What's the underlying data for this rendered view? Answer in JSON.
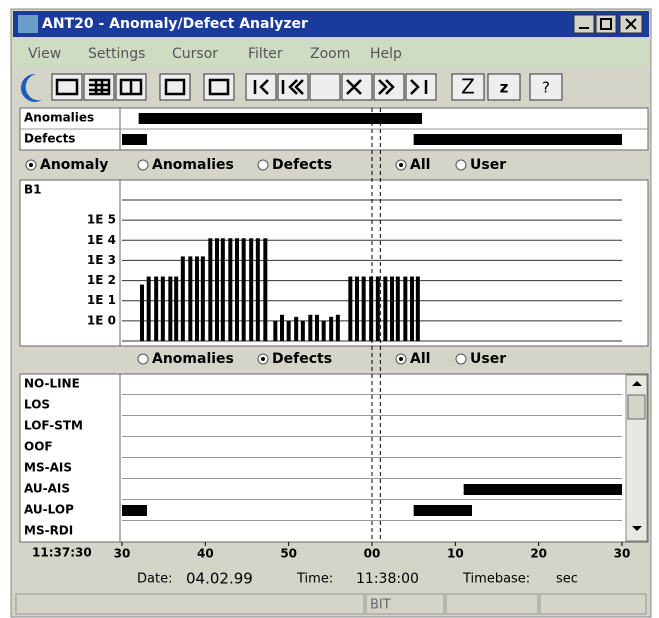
{
  "window": {
    "title": "ANT20 - Anomaly/Defect Analyzer"
  },
  "menu": [
    "View",
    "Settings",
    "Cursor",
    "Filter",
    "Zoom",
    "Help"
  ],
  "toolbar": {
    "labels": [
      "Z",
      "z",
      "?"
    ]
  },
  "filters": [
    {
      "options": [
        "Anomaly",
        "Anomalies",
        "Defects",
        "All",
        "User"
      ],
      "selected": [
        0,
        3
      ]
    },
    {
      "options": [
        "Anomalies",
        "Defects",
        "All",
        "User"
      ],
      "selected": [
        1,
        2
      ]
    }
  ],
  "cursor": [
    30,
    31
  ],
  "chart_data": [
    {
      "type": "timeline",
      "xlim": [
        0,
        60
      ],
      "color": "#000000",
      "rows": [
        {
          "name": "Anomalies",
          "intervals": [
            [
              2,
              36
            ]
          ]
        },
        {
          "name": "Defects",
          "intervals": [
            [
              0,
              3
            ],
            [
              35,
              60
            ]
          ]
        }
      ]
    },
    {
      "type": "bar",
      "title": "B1",
      "xlim": [
        0,
        60
      ],
      "ylim": [
        -1,
        6
      ],
      "color": "#000000",
      "yticks": [
        {
          "value": 5,
          "label": "1E 5"
        },
        {
          "value": 4,
          "label": "1E 4"
        },
        {
          "value": 3,
          "label": "1E 3"
        },
        {
          "value": 2,
          "label": "1E 2"
        },
        {
          "value": 1,
          "label": "1E 1"
        },
        {
          "value": 0,
          "label": "1E 0"
        }
      ],
      "x": [
        2.4,
        3.2,
        4.1,
        4.9,
        5.8,
        6.5,
        7.3,
        8.2,
        9.0,
        9.7,
        10.6,
        11.4,
        12.1,
        13.0,
        13.8,
        14.6,
        15.5,
        16.3,
        17.2,
        18.4,
        19.2,
        20.0,
        20.9,
        21.7,
        22.6,
        23.4,
        24.2,
        25.1,
        25.9,
        27.4,
        28.2,
        29.0,
        29.9,
        30.7,
        31.6,
        32.4,
        33.1,
        34.0,
        34.8,
        35.5
      ],
      "values": [
        1.8,
        2.2,
        2.2,
        2.2,
        2.2,
        2.2,
        3.2,
        3.2,
        3.2,
        3.2,
        4.1,
        4.1,
        4.1,
        4.1,
        4.1,
        4.1,
        4.1,
        4.1,
        4.1,
        0,
        0.3,
        0,
        0.2,
        0,
        0.3,
        0.3,
        0,
        0.2,
        0.3,
        2.2,
        2.2,
        2.2,
        2.2,
        2.2,
        2.2,
        2.2,
        2.2,
        2.2,
        2.2,
        2.2
      ]
    },
    {
      "type": "timeline",
      "xlim": [
        0,
        60
      ],
      "color": "#000000",
      "start_label": "11:37:30",
      "xticks": [
        {
          "value": 0,
          "label": "30"
        },
        {
          "value": 10,
          "label": "40"
        },
        {
          "value": 20,
          "label": "50"
        },
        {
          "value": 30,
          "label": "00"
        },
        {
          "value": 40,
          "label": "10"
        },
        {
          "value": 50,
          "label": "20"
        },
        {
          "value": 60,
          "label": "30"
        }
      ],
      "rows": [
        {
          "name": "NO-LINE",
          "intervals": []
        },
        {
          "name": "LOS",
          "intervals": []
        },
        {
          "name": "LOF-STM",
          "intervals": []
        },
        {
          "name": "OOF",
          "intervals": []
        },
        {
          "name": "MS-AIS",
          "intervals": []
        },
        {
          "name": "AU-AIS",
          "intervals": [
            [
              41,
              60
            ]
          ]
        },
        {
          "name": "AU-LOP",
          "intervals": [
            [
              0,
              3
            ],
            [
              35,
              42
            ]
          ]
        },
        {
          "name": "MS-RDI",
          "intervals": []
        }
      ]
    }
  ],
  "info": {
    "date_label": "Date:",
    "date": "04.02.99",
    "time_label": "Time:",
    "time": "11:38:00",
    "timebase_label": "Timebase:",
    "timebase": "sec"
  },
  "status": [
    "BIT"
  ]
}
